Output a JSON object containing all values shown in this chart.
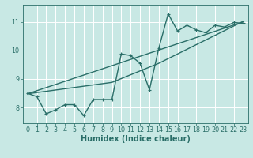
{
  "title": "",
  "xlabel": "Humidex (Indice chaleur)",
  "ylabel": "",
  "xlim": [
    -0.5,
    23.5
  ],
  "ylim": [
    7.45,
    11.6
  ],
  "xticks": [
    0,
    1,
    2,
    3,
    4,
    5,
    6,
    7,
    8,
    9,
    10,
    11,
    12,
    13,
    14,
    15,
    16,
    17,
    18,
    19,
    20,
    21,
    22,
    23
  ],
  "yticks": [
    8,
    9,
    10,
    11
  ],
  "bg_color": "#c8e8e4",
  "line_color": "#2a6e68",
  "grid_color": "#ffffff",
  "data_x": [
    0,
    1,
    2,
    3,
    4,
    5,
    6,
    7,
    8,
    9,
    10,
    11,
    12,
    13,
    14,
    15,
    16,
    17,
    18,
    19,
    20,
    21,
    22,
    23
  ],
  "data_y": [
    8.5,
    8.38,
    7.78,
    7.92,
    8.1,
    8.1,
    7.72,
    8.28,
    8.28,
    8.28,
    9.88,
    9.82,
    9.55,
    8.62,
    10.08,
    11.28,
    10.68,
    10.88,
    10.72,
    10.62,
    10.88,
    10.82,
    10.98,
    10.95
  ],
  "trend1_x": [
    0,
    23
  ],
  "trend1_y": [
    8.48,
    11.0
  ],
  "trend2_x": [
    0,
    9,
    14,
    23
  ],
  "trend2_y": [
    8.48,
    8.88,
    9.55,
    11.02
  ],
  "marker_size": 2.5,
  "line_width": 1.0,
  "tick_fontsize": 5.8,
  "label_fontsize": 7.0,
  "tick_label_color": "#2a6e68"
}
